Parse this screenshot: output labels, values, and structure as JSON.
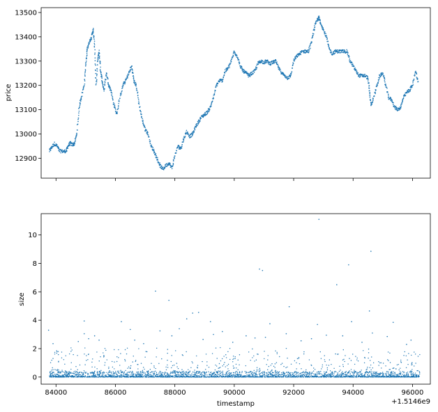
{
  "chart_data": [
    {
      "type": "scatter",
      "ylabel": "price",
      "xlabel": "",
      "xlim": [
        83500,
        96600
      ],
      "ylim": [
        12818,
        13520
      ],
      "xticks": [
        84000,
        86000,
        88000,
        90000,
        92000,
        94000,
        96000
      ],
      "yticks": [
        12900,
        13000,
        13100,
        13200,
        13300,
        13400,
        13500
      ],
      "ytick_labels": [
        "12900",
        "13000",
        "13100",
        "13200",
        "13300",
        "13400",
        "13500"
      ],
      "show_xtick_labels": false,
      "grid": false,
      "color": "#1f77b4",
      "path": [
        [
          83780,
          12930
        ],
        [
          83850,
          12945
        ],
        [
          83950,
          12960
        ],
        [
          84050,
          12948
        ],
        [
          84120,
          12930
        ],
        [
          84250,
          12928
        ],
        [
          84350,
          12930
        ],
        [
          84400,
          12950
        ],
        [
          84480,
          12962
        ],
        [
          84560,
          12955
        ],
        [
          84620,
          12960
        ],
        [
          84700,
          13000
        ],
        [
          84780,
          13110
        ],
        [
          84850,
          13150
        ],
        [
          84950,
          13200
        ],
        [
          85000,
          13280
        ],
        [
          85050,
          13350
        ],
        [
          85120,
          13380
        ],
        [
          85200,
          13400
        ],
        [
          85250,
          13430
        ],
        [
          85300,
          13360
        ],
        [
          85350,
          13200
        ],
        [
          85400,
          13300
        ],
        [
          85450,
          13340
        ],
        [
          85500,
          13260
        ],
        [
          85550,
          13220
        ],
        [
          85620,
          13180
        ],
        [
          85700,
          13250
        ],
        [
          85780,
          13200
        ],
        [
          85850,
          13180
        ],
        [
          85950,
          13120
        ],
        [
          86050,
          13080
        ],
        [
          86150,
          13150
        ],
        [
          86250,
          13200
        ],
        [
          86350,
          13220
        ],
        [
          86450,
          13250
        ],
        [
          86550,
          13280
        ],
        [
          86620,
          13220
        ],
        [
          86700,
          13200
        ],
        [
          86800,
          13120
        ],
        [
          86900,
          13060
        ],
        [
          87000,
          13020
        ],
        [
          87100,
          13000
        ],
        [
          87200,
          12950
        ],
        [
          87300,
          12930
        ],
        [
          87400,
          12900
        ],
        [
          87500,
          12870
        ],
        [
          87600,
          12855
        ],
        [
          87700,
          12870
        ],
        [
          87800,
          12880
        ],
        [
          87900,
          12860
        ],
        [
          88000,
          12910
        ],
        [
          88100,
          12950
        ],
        [
          88200,
          12940
        ],
        [
          88300,
          12980
        ],
        [
          88400,
          13010
        ],
        [
          88500,
          12990
        ],
        [
          88600,
          13000
        ],
        [
          88700,
          13030
        ],
        [
          88800,
          13050
        ],
        [
          88900,
          13070
        ],
        [
          89000,
          13080
        ],
        [
          89100,
          13090
        ],
        [
          89200,
          13110
        ],
        [
          89300,
          13150
        ],
        [
          89400,
          13200
        ],
        [
          89500,
          13220
        ],
        [
          89600,
          13220
        ],
        [
          89700,
          13260
        ],
        [
          89800,
          13270
        ],
        [
          89900,
          13300
        ],
        [
          90000,
          13340
        ],
        [
          90100,
          13320
        ],
        [
          90200,
          13280
        ],
        [
          90300,
          13260
        ],
        [
          90400,
          13250
        ],
        [
          90500,
          13240
        ],
        [
          90600,
          13250
        ],
        [
          90700,
          13260
        ],
        [
          90800,
          13290
        ],
        [
          90900,
          13300
        ],
        [
          91000,
          13295
        ],
        [
          91100,
          13300
        ],
        [
          91200,
          13290
        ],
        [
          91300,
          13295
        ],
        [
          91400,
          13300
        ],
        [
          91500,
          13270
        ],
        [
          91600,
          13250
        ],
        [
          91700,
          13240
        ],
        [
          91800,
          13230
        ],
        [
          91900,
          13240
        ],
        [
          92000,
          13300
        ],
        [
          92100,
          13320
        ],
        [
          92200,
          13330
        ],
        [
          92300,
          13340
        ],
        [
          92400,
          13340
        ],
        [
          92500,
          13340
        ],
        [
          92600,
          13380
        ],
        [
          92700,
          13440
        ],
        [
          92800,
          13470
        ],
        [
          92850,
          13480
        ],
        [
          92900,
          13460
        ],
        [
          93000,
          13430
        ],
        [
          93100,
          13400
        ],
        [
          93200,
          13350
        ],
        [
          93300,
          13330
        ],
        [
          93400,
          13340
        ],
        [
          93500,
          13340
        ],
        [
          93600,
          13340
        ],
        [
          93700,
          13340
        ],
        [
          93800,
          13340
        ],
        [
          93900,
          13300
        ],
        [
          94000,
          13280
        ],
        [
          94100,
          13260
        ],
        [
          94200,
          13240
        ],
        [
          94300,
          13240
        ],
        [
          94400,
          13240
        ],
        [
          94500,
          13230
        ],
        [
          94550,
          13180
        ],
        [
          94600,
          13120
        ],
        [
          94700,
          13150
        ],
        [
          94800,
          13200
        ],
        [
          94900,
          13240
        ],
        [
          95000,
          13250
        ],
        [
          95100,
          13200
        ],
        [
          95200,
          13150
        ],
        [
          95300,
          13140
        ],
        [
          95400,
          13110
        ],
        [
          95500,
          13100
        ],
        [
          95600,
          13110
        ],
        [
          95700,
          13150
        ],
        [
          95800,
          13170
        ],
        [
          95900,
          13180
        ],
        [
          96000,
          13200
        ],
        [
          96100,
          13260
        ],
        [
          96200,
          13210
        ]
      ]
    },
    {
      "type": "scatter",
      "ylabel": "size",
      "xlabel": "timestamp",
      "offset_label": "+1.5146e9",
      "xlim": [
        83500,
        96600
      ],
      "ylim": [
        -0.5,
        11.5
      ],
      "xticks": [
        84000,
        86000,
        88000,
        90000,
        92000,
        94000,
        96000
      ],
      "xtick_labels": [
        "84000",
        "86000",
        "88000",
        "90000",
        "92000",
        "94000",
        "96000"
      ],
      "yticks": [
        0,
        2,
        4,
        6,
        8,
        10
      ],
      "ytick_labels": [
        "0",
        "2",
        "4",
        "6",
        "8",
        "10"
      ],
      "grid": false,
      "color": "#1f77b4",
      "baseline_range": [
        0,
        0.25
      ],
      "outliers": [
        [
          92850,
          11.1
        ],
        [
          94600,
          8.85
        ],
        [
          93850,
          7.9
        ],
        [
          90850,
          7.6
        ],
        [
          90950,
          7.5
        ],
        [
          93450,
          6.5
        ],
        [
          87350,
          6.05
        ],
        [
          87800,
          5.4
        ],
        [
          91850,
          4.95
        ],
        [
          88800,
          4.55
        ],
        [
          94550,
          4.65
        ],
        [
          88600,
          4.5
        ],
        [
          88400,
          4.1
        ],
        [
          84950,
          3.95
        ],
        [
          86200,
          3.9
        ],
        [
          89200,
          3.9
        ],
        [
          93950,
          3.9
        ],
        [
          95350,
          3.85
        ],
        [
          91200,
          3.75
        ],
        [
          92800,
          3.7
        ],
        [
          83900,
          2.35
        ],
        [
          84750,
          2.5
        ],
        [
          85300,
          2.9
        ],
        [
          85450,
          2.6
        ],
        [
          86950,
          2.35
        ],
        [
          88950,
          2.65
        ],
        [
          89950,
          2.45
        ],
        [
          92250,
          2.55
        ],
        [
          94300,
          2.45
        ],
        [
          95800,
          2.3
        ],
        [
          83750,
          3.3
        ],
        [
          84950,
          3.05
        ],
        [
          86500,
          3.35
        ],
        [
          87500,
          3.25
        ],
        [
          88150,
          3.4
        ],
        [
          89600,
          3.2
        ],
        [
          90400,
          2.9
        ],
        [
          91050,
          2.8
        ],
        [
          91750,
          3.05
        ],
        [
          92600,
          2.7
        ],
        [
          93650,
          2.9
        ],
        [
          94650,
          3.1
        ],
        [
          95150,
          2.85
        ],
        [
          95950,
          2.6
        ],
        [
          85100,
          2.7
        ],
        [
          86650,
          2.6
        ],
        [
          87900,
          2.9
        ],
        [
          89300,
          3.0
        ],
        [
          90700,
          2.75
        ],
        [
          93100,
          2.95
        ]
      ]
    }
  ]
}
